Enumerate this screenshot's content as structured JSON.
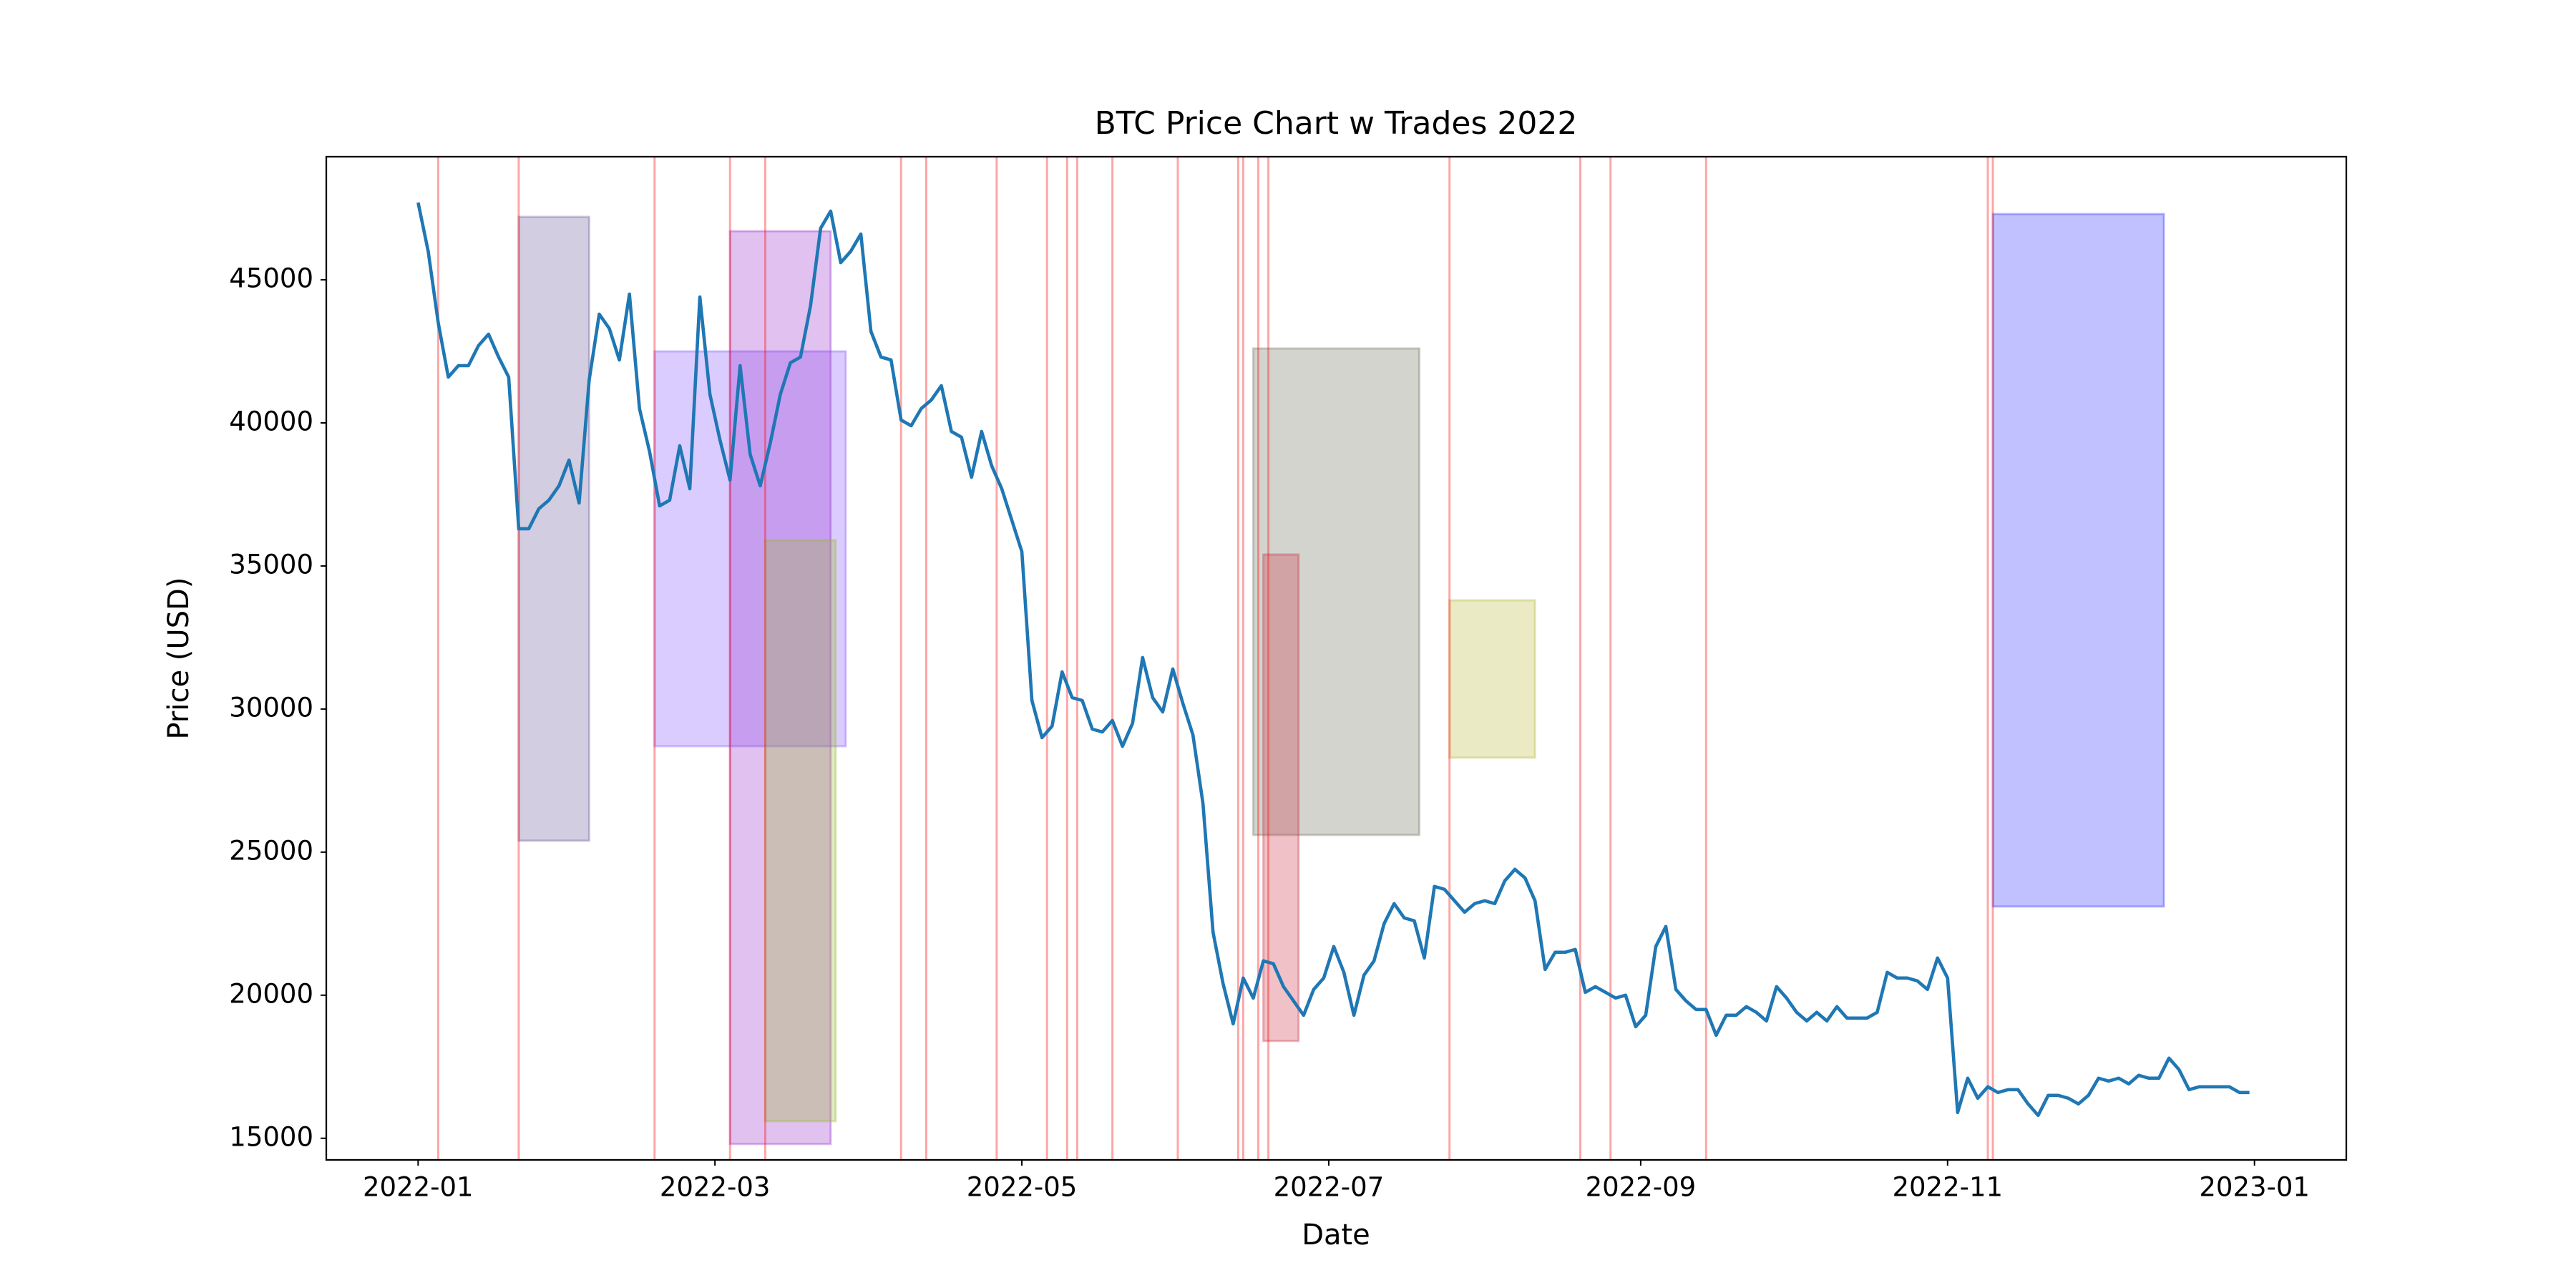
{
  "chart_data": {
    "type": "line",
    "title": "BTC Price Chart w Trades 2022",
    "x_label": "Date",
    "y_label": "Price (USD)",
    "x": [
      0,
      2,
      4,
      6,
      8,
      10,
      12,
      14,
      16,
      18,
      20,
      22,
      24,
      26,
      28,
      30,
      32,
      34,
      36,
      38,
      40,
      42,
      44,
      46,
      48,
      50,
      52,
      54,
      56,
      58,
      60,
      62,
      64,
      66,
      68,
      70,
      72,
      74,
      76,
      78,
      80,
      82,
      84,
      86,
      88,
      90,
      92,
      94,
      96,
      98,
      100,
      102,
      104,
      106,
      108,
      110,
      112,
      114,
      116,
      118,
      120,
      122,
      124,
      126,
      128,
      130,
      132,
      134,
      136,
      138,
      140,
      142,
      144,
      146,
      148,
      150,
      152,
      154,
      156,
      158,
      160,
      162,
      164,
      166,
      168,
      170,
      172,
      174,
      176,
      178,
      180,
      182,
      184,
      186,
      188,
      190,
      192,
      194,
      196,
      198,
      200,
      202,
      204,
      206,
      208,
      210,
      212,
      214,
      216,
      218,
      220,
      222,
      224,
      226,
      228,
      230,
      232,
      234,
      236,
      238,
      240,
      242,
      244,
      246,
      248,
      250,
      252,
      254,
      256,
      258,
      260,
      262,
      264,
      266,
      268,
      270,
      272,
      274,
      276,
      278,
      280,
      282,
      284,
      286,
      288,
      290,
      292,
      294,
      296,
      298,
      300,
      302,
      304,
      306,
      308,
      310,
      312,
      314,
      316,
      318,
      320,
      322,
      324,
      326,
      328,
      330,
      332,
      334,
      336,
      338,
      340,
      342,
      344,
      346,
      348,
      350,
      352,
      354,
      356,
      358,
      360,
      362,
      364
    ],
    "values": [
      47700,
      46000,
      43500,
      41600,
      42000,
      42000,
      42700,
      43100,
      42300,
      41600,
      36300,
      36300,
      37000,
      37300,
      37800,
      38700,
      37200,
      41500,
      43800,
      43300,
      42200,
      44500,
      40500,
      39000,
      37100,
      37300,
      39200,
      37700,
      44400,
      41000,
      39400,
      38000,
      42000,
      38900,
      37800,
      39300,
      41000,
      42100,
      42300,
      44100,
      46800,
      47400,
      45600,
      46000,
      46600,
      43200,
      42300,
      42200,
      40100,
      39900,
      40500,
      40800,
      41300,
      39700,
      39500,
      38100,
      39700,
      38500,
      37700,
      36600,
      35500,
      30300,
      29000,
      29400,
      31300,
      30400,
      30300,
      29300,
      29200,
      29600,
      28700,
      29500,
      31800,
      30400,
      29900,
      31400,
      30200,
      29100,
      26700,
      22200,
      20400,
      19000,
      20600,
      19900,
      21200,
      21100,
      20300,
      19800,
      19300,
      20200,
      20600,
      21700,
      20800,
      19300,
      20700,
      21200,
      22500,
      23200,
      22700,
      22600,
      21300,
      23800,
      23700,
      23300,
      22900,
      23200,
      23300,
      23200,
      24000,
      24400,
      24100,
      23300,
      20900,
      21500,
      21500,
      21600,
      20100,
      20300,
      20100,
      19900,
      20000,
      18900,
      19300,
      21700,
      22400,
      20200,
      19800,
      19500,
      19500,
      18600,
      19300,
      19300,
      19600,
      19400,
      19100,
      20300,
      19900,
      19400,
      19100,
      19400,
      19100,
      19600,
      19200,
      19200,
      19200,
      19400,
      20800,
      20600,
      20600,
      20500,
      20200,
      21300,
      20600,
      15900,
      17100,
      16400,
      16800,
      16600,
      16700,
      16700,
      16200,
      15800,
      16500,
      16500,
      16400,
      16200,
      16500,
      17100,
      17000,
      17100,
      16900,
      17200,
      17100,
      17100,
      17800,
      17400,
      16700,
      16800,
      16800,
      16800,
      16800,
      16600,
      16600
    ],
    "color": "#1f77b4",
    "trade_lines": [
      4,
      20,
      47,
      62,
      69,
      96,
      101,
      115,
      125,
      129,
      131,
      138,
      151,
      163,
      164,
      167,
      169,
      205,
      231,
      237,
      256,
      312,
      313
    ],
    "trade_line_color": "#ff0000",
    "trades": [
      {
        "x": [
          20,
          34
        ],
        "y": [
          25400,
          47200
        ],
        "color": "#6a5a9a"
      },
      {
        "x": [
          47,
          85
        ],
        "y": [
          28700,
          42500
        ],
        "color": "#8855ff"
      },
      {
        "x": [
          62,
          82
        ],
        "y": [
          14800,
          46700
        ],
        "color": "#9933cc"
      },
      {
        "x": [
          69,
          83
        ],
        "y": [
          15600,
          35900
        ],
        "color": "#99bb33"
      },
      {
        "x": [
          166,
          199
        ],
        "y": [
          25600,
          42600
        ],
        "color": "#707060"
      },
      {
        "x": [
          168,
          175
        ],
        "y": [
          18400,
          35400
        ],
        "color": "#cc3344"
      },
      {
        "x": [
          205,
          222
        ],
        "y": [
          28300,
          33800
        ],
        "color": "#b8b840"
      },
      {
        "x": [
          313,
          347
        ],
        "y": [
          23100,
          47300
        ],
        "color": "#3333ff"
      }
    ],
    "xlim": [
      -18.25,
      383.25
    ],
    "xticks": [
      {
        "value": 0,
        "label": "2022-01"
      },
      {
        "value": 59,
        "label": "2022-03"
      },
      {
        "value": 120,
        "label": "2022-05"
      },
      {
        "value": 181,
        "label": "2022-07"
      },
      {
        "value": 243,
        "label": "2022-09"
      },
      {
        "value": 304,
        "label": "2022-11"
      },
      {
        "value": 365,
        "label": "2023-01"
      }
    ],
    "ylim": [
      14244,
      49302
    ],
    "yticks": [
      15000,
      20000,
      25000,
      30000,
      35000,
      40000,
      45000
    ],
    "grid": false
  }
}
